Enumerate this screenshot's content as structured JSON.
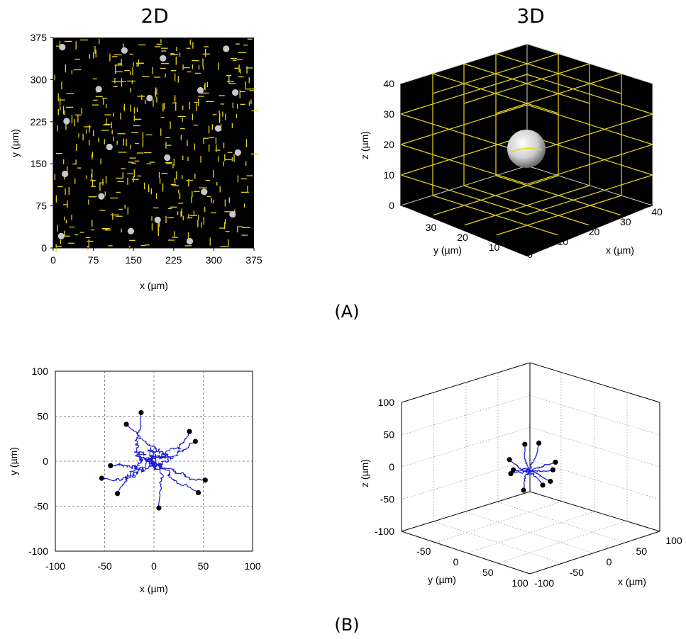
{
  "panel_a": {
    "label": "(A)",
    "left_title": "2D",
    "right_title": "3D"
  },
  "panel_b": {
    "label": "(B)"
  },
  "chart_data": [
    {
      "id": "a-2d",
      "type": "scatter",
      "title": "2D",
      "xlabel": "x (µm)",
      "ylabel": "y (µm)",
      "xlim": [
        0,
        375
      ],
      "ylim": [
        0,
        375
      ],
      "xticks": [
        0,
        75,
        150,
        225,
        300,
        375
      ],
      "yticks": [
        0,
        75,
        150,
        225,
        300,
        375
      ],
      "background": "#000000",
      "fiber_color": "#e6d81a",
      "cell_color": "#c8c8c8",
      "series": [
        {
          "x": [
            17,
            133,
            205,
            323,
            85,
            180,
            275,
            340,
            25,
            308,
            105,
            213,
            345,
            22,
            90,
            282,
            15,
            145,
            195,
            335,
            255
          ],
          "y": [
            358,
            352,
            338,
            355,
            283,
            267,
            281,
            277,
            226,
            213,
            180,
            161,
            170,
            132,
            92,
            100,
            21,
            30,
            50,
            60,
            12
          ]
        }
      ]
    },
    {
      "id": "a-3d",
      "type": "scatter",
      "title": "3D",
      "xlabel": "x (µm)",
      "ylabel": "y (µm)",
      "zlabel": "z (µm)",
      "xlim": [
        0,
        40
      ],
      "ylim": [
        0,
        40
      ],
      "zlim": [
        0,
        40
      ],
      "xticks": [
        0,
        10,
        20,
        30,
        40
      ],
      "yticks": [
        10,
        20,
        30
      ],
      "zticks": [
        0,
        10,
        20,
        30,
        40
      ],
      "background": "#000000",
      "grid_color": "#e6d81a",
      "cell_color": "#d8d8d8"
    },
    {
      "id": "b-2d",
      "type": "line",
      "xlabel": "x (µm)",
      "ylabel": "y (µm)",
      "xlim": [
        -100,
        100
      ],
      "ylim": [
        -100,
        100
      ],
      "xticks": [
        -100,
        -50,
        0,
        50,
        100
      ],
      "yticks": [
        -100,
        -50,
        0,
        50,
        100
      ],
      "grid": true,
      "line_color": "#1a1ad8",
      "endpoints": {
        "x": [
          -13,
          -28,
          36,
          42,
          -44,
          -53,
          -37,
          5,
          45,
          52
        ],
        "y": [
          54,
          41,
          33,
          22,
          -5,
          -19,
          -36,
          -52,
          -35,
          -21
        ]
      }
    },
    {
      "id": "b-3d",
      "type": "line",
      "xlabel": "x (µm)",
      "ylabel": "y (µm)",
      "zlabel": "z (µm)",
      "xlim": [
        -100,
        100
      ],
      "ylim": [
        -100,
        100
      ],
      "zlim": [
        -100,
        100
      ],
      "xticks": [
        -100,
        -50,
        0,
        50,
        100
      ],
      "yticks": [
        -50,
        0,
        50,
        100
      ],
      "zticks": [
        -100,
        -50,
        0,
        50,
        100
      ],
      "grid": true,
      "line_color": "#1a1ad8"
    }
  ]
}
